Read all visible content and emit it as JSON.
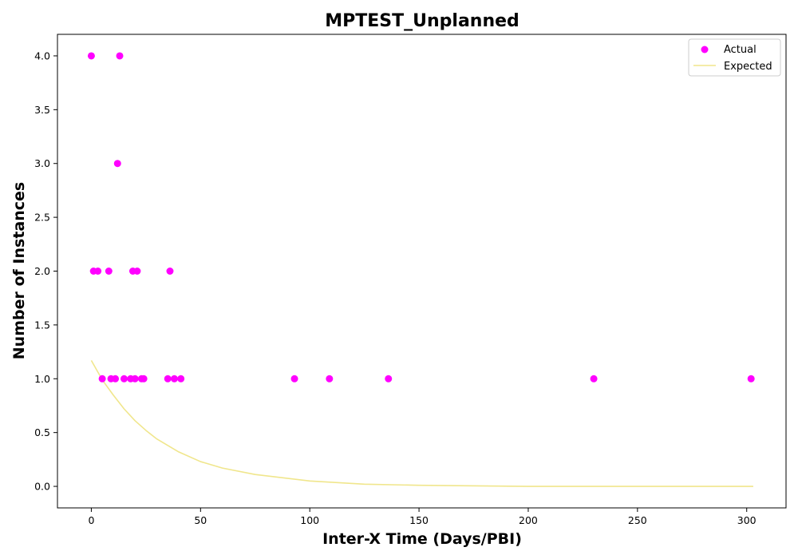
{
  "chart_data": {
    "type": "scatter",
    "title": "MPTEST_Unplanned",
    "xlabel": "Inter-X Time (Days/PBI)",
    "ylabel": "Number of Instances",
    "xlim": [
      -15.5,
      318
    ],
    "ylim": [
      -0.2,
      4.2
    ],
    "x_ticks": [
      0,
      50,
      100,
      150,
      200,
      250,
      300
    ],
    "x_tick_labels": [
      "0",
      "50",
      "100",
      "150",
      "200",
      "250",
      "300"
    ],
    "y_ticks": [
      0.0,
      0.5,
      1.0,
      1.5,
      2.0,
      2.5,
      3.0,
      3.5,
      4.0
    ],
    "y_tick_labels": [
      "0.0",
      "0.5",
      "1.0",
      "1.5",
      "2.0",
      "2.5",
      "3.0",
      "3.5",
      "4.0"
    ],
    "grid": false,
    "legend_position": "top-right",
    "series": [
      {
        "name": "Actual",
        "kind": "scatter",
        "color": "#ff00ff",
        "points": [
          [
            0,
            4
          ],
          [
            13,
            4
          ],
          [
            12,
            3
          ],
          [
            1,
            2
          ],
          [
            3,
            2
          ],
          [
            8,
            2
          ],
          [
            19,
            2
          ],
          [
            21,
            2
          ],
          [
            36,
            2
          ],
          [
            5,
            1
          ],
          [
            9,
            1
          ],
          [
            11,
            1
          ],
          [
            15,
            1
          ],
          [
            18,
            1
          ],
          [
            20,
            1
          ],
          [
            23,
            1
          ],
          [
            24,
            1
          ],
          [
            35,
            1
          ],
          [
            38,
            1
          ],
          [
            41,
            1
          ],
          [
            93,
            1
          ],
          [
            109,
            1
          ],
          [
            136,
            1
          ],
          [
            230,
            1
          ],
          [
            302,
            1
          ]
        ]
      },
      {
        "name": "Expected",
        "kind": "line",
        "color": "#f0e68c",
        "x": [
          0,
          5,
          10,
          15,
          20,
          25,
          30,
          40,
          50,
          60,
          75,
          100,
          125,
          150,
          200,
          250,
          303
        ],
        "y": [
          1.17,
          0.99,
          0.85,
          0.72,
          0.61,
          0.52,
          0.44,
          0.32,
          0.23,
          0.17,
          0.11,
          0.05,
          0.02,
          0.01,
          0.0,
          0.0,
          0.0
        ]
      }
    ]
  }
}
